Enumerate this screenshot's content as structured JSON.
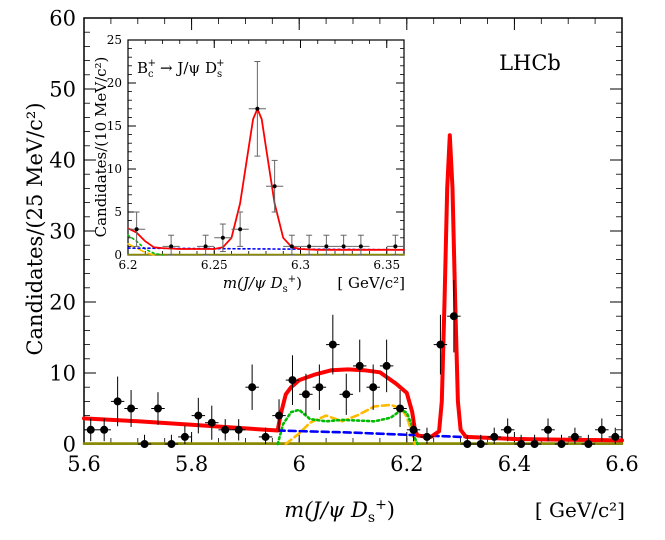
{
  "chart_data": [
    {
      "type": "scatter",
      "title": "",
      "watermark": "LHCb",
      "xlabel": "m(J/ψ D",
      "xlabel_sub": "s",
      "xlabel_sup": "+",
      "xlabel_close": ")",
      "xunit": "[ GeV/c²]",
      "ylabel": "Candidates/(25 MeV/c²)",
      "xlim": [
        5.6,
        6.6
      ],
      "ylim": [
        0,
        60
      ],
      "x_ticks": [
        5.6,
        5.8,
        6,
        6.2,
        6.4,
        6.6
      ],
      "x_tick_labels": [
        "5.6",
        "5.8",
        "6",
        "6.2",
        "6.4",
        "6.6"
      ],
      "y_ticks": [
        0,
        10,
        20,
        30,
        40,
        50,
        60
      ],
      "y_tick_labels": [
        "0",
        "10",
        "20",
        "30",
        "40",
        "50",
        "60"
      ],
      "bin_half_width": 0.0125,
      "data_points": [
        {
          "x": 5.6125,
          "y": 2,
          "err": 1.6
        },
        {
          "x": 5.6375,
          "y": 2,
          "err": 1.6
        },
        {
          "x": 5.6625,
          "y": 6,
          "err": 3.5
        },
        {
          "x": 5.6875,
          "y": 5,
          "err": 2.6
        },
        {
          "x": 5.7125,
          "y": 0,
          "err": 1.3
        },
        {
          "x": 5.7375,
          "y": 5,
          "err": 2.3
        },
        {
          "x": 5.7625,
          "y": 0,
          "err": 1.3
        },
        {
          "x": 5.7875,
          "y": 1,
          "err": 1.6
        },
        {
          "x": 5.8125,
          "y": 4,
          "err": 2.5
        },
        {
          "x": 5.8375,
          "y": 3,
          "err": 2.4
        },
        {
          "x": 5.8625,
          "y": 2,
          "err": 1.5
        },
        {
          "x": 5.8875,
          "y": 2,
          "err": 1.5
        },
        {
          "x": 5.9125,
          "y": 8,
          "err": 3.2
        },
        {
          "x": 5.9375,
          "y": 1,
          "err": 1.3
        },
        {
          "x": 5.9625,
          "y": 4,
          "err": 2.3
        },
        {
          "x": 5.9875,
          "y": 9,
          "err": 3.5
        },
        {
          "x": 6.0125,
          "y": 7,
          "err": 2.9
        },
        {
          "x": 6.0375,
          "y": 8,
          "err": 3.2
        },
        {
          "x": 6.0625,
          "y": 14,
          "err": 4.2
        },
        {
          "x": 6.0875,
          "y": 7,
          "err": 2.9
        },
        {
          "x": 6.1125,
          "y": 11,
          "err": 3.7
        },
        {
          "x": 6.1375,
          "y": 8,
          "err": 3.2
        },
        {
          "x": 6.1625,
          "y": 11,
          "err": 3.7
        },
        {
          "x": 6.1875,
          "y": 5,
          "err": 2.6
        },
        {
          "x": 6.2125,
          "y": 2,
          "err": 1.6
        },
        {
          "x": 6.2375,
          "y": 1,
          "err": 1.3
        },
        {
          "x": 6.2625,
          "y": 14,
          "err": 4.2
        },
        {
          "x": 6.2875,
          "y": 18,
          "err": 5.1
        },
        {
          "x": 6.3125,
          "y": 0,
          "err": 1.3
        },
        {
          "x": 6.3375,
          "y": 0,
          "err": 1.3
        },
        {
          "x": 6.3625,
          "y": 1,
          "err": 1.3
        },
        {
          "x": 6.3875,
          "y": 2,
          "err": 1.6
        },
        {
          "x": 6.4125,
          "y": 0,
          "err": 1.3
        },
        {
          "x": 6.4375,
          "y": 0,
          "err": 1.3
        },
        {
          "x": 6.4625,
          "y": 2,
          "err": 1.6
        },
        {
          "x": 6.4875,
          "y": 0,
          "err": 1.3
        },
        {
          "x": 6.5125,
          "y": 1,
          "err": 1.3
        },
        {
          "x": 6.5375,
          "y": 0,
          "err": 1.3
        },
        {
          "x": 6.5625,
          "y": 2,
          "err": 1.6
        },
        {
          "x": 6.5875,
          "y": 1,
          "err": 1.3
        }
      ],
      "series": [
        {
          "name": "total-fit",
          "color": "#ff0000",
          "style": "solid",
          "x": [
            5.6,
            5.7,
            5.8,
            5.9,
            5.96,
            5.965,
            5.975,
            5.985,
            6.0,
            6.03,
            6.06,
            6.09,
            6.12,
            6.15,
            6.18,
            6.2,
            6.21,
            6.215,
            6.22,
            6.23,
            6.245,
            6.26,
            6.265,
            6.27,
            6.275,
            6.28,
            6.285,
            6.29,
            6.295,
            6.3,
            6.31,
            6.4,
            6.5,
            6.6
          ],
          "y": [
            3.6,
            3.2,
            2.7,
            2.2,
            1.9,
            4.0,
            7.0,
            8.0,
            9.0,
            9.8,
            10.4,
            10.5,
            10.4,
            10.1,
            8.5,
            7.2,
            4.5,
            2.0,
            1.2,
            1.1,
            1.0,
            1.8,
            6.0,
            20.0,
            36.0,
            43.5,
            36.0,
            20.0,
            6.0,
            2.0,
            1.0,
            0.7,
            0.6,
            0.5
          ]
        },
        {
          "name": "background",
          "color": "#0000ff",
          "style": "dashed",
          "x": [
            5.96,
            6.1,
            6.2,
            6.3,
            6.4,
            6.5,
            6.6
          ],
          "y": [
            1.9,
            1.6,
            1.3,
            1.0,
            0.8,
            0.6,
            0.5
          ]
        },
        {
          "name": "partially-reconstructed-green",
          "color": "#00bb00",
          "style": "dotted",
          "x": [
            5.96,
            5.97,
            5.985,
            6.0,
            6.02,
            6.05,
            6.08,
            6.11,
            6.14,
            6.17,
            6.19,
            6.2,
            6.21,
            6.215,
            6.22
          ],
          "y": [
            0,
            2.8,
            4.5,
            4.8,
            3.5,
            3.2,
            3.4,
            3.3,
            3.2,
            3.7,
            4.8,
            4.4,
            2.5,
            0.8,
            0
          ]
        },
        {
          "name": "partially-reconstructed-yellow",
          "color": "#ffbb00",
          "style": "dashed",
          "x": [
            5.975,
            6.0,
            6.02,
            6.05,
            6.08,
            6.11,
            6.14,
            6.17,
            6.19,
            6.2,
            6.21,
            6.215
          ],
          "y": [
            0,
            1.5,
            3.0,
            4.0,
            3.2,
            4.1,
            5.3,
            5.5,
            5.0,
            3.8,
            1.5,
            0
          ]
        },
        {
          "name": "olive-baseline",
          "color": "#8a8a00",
          "style": "solid",
          "x": [
            5.6,
            6.6
          ],
          "y": [
            0.05,
            0.05
          ]
        }
      ]
    },
    {
      "type": "scatter",
      "title": "",
      "legend_text": "B",
      "legend_text_sub": "c",
      "legend_text_sup": "+",
      "legend_arrow": "→ J/ψ D",
      "legend_arrow_sub": "s",
      "legend_arrow_sup": "+",
      "xlabel": "m(J/ψ D",
      "xlabel_sub": "s",
      "xlabel_sup": "+",
      "xlabel_close": ")",
      "xunit": "[ GeV/c²]",
      "ylabel": "Candidates/(10 MeV/c²)",
      "xlim": [
        6.2,
        6.36
      ],
      "ylim": [
        0,
        25
      ],
      "x_ticks": [
        6.2,
        6.25,
        6.3,
        6.35
      ],
      "x_tick_labels": [
        "6.2",
        "6.25",
        "6.3",
        "6.35"
      ],
      "y_ticks": [
        0,
        5,
        10,
        15,
        20,
        25
      ],
      "y_tick_labels": [
        "0",
        "5",
        "10",
        "15",
        "20",
        "25"
      ],
      "bin_half_width": 0.005,
      "data_points": [
        {
          "x": 6.205,
          "y": 3,
          "err": 2.0
        },
        {
          "x": 6.225,
          "y": 1,
          "err": 1.3
        },
        {
          "x": 6.245,
          "y": 1,
          "err": 1.3
        },
        {
          "x": 6.255,
          "y": 2,
          "err": 1.6
        },
        {
          "x": 6.265,
          "y": 3,
          "err": 2.0
        },
        {
          "x": 6.275,
          "y": 17,
          "err": 5.5
        },
        {
          "x": 6.285,
          "y": 8,
          "err": 3.0
        },
        {
          "x": 6.295,
          "y": 1,
          "err": 1.3
        },
        {
          "x": 6.305,
          "y": 1,
          "err": 1.3
        },
        {
          "x": 6.315,
          "y": 1,
          "err": 1.3
        },
        {
          "x": 6.325,
          "y": 1,
          "err": 1.3
        },
        {
          "x": 6.335,
          "y": 1,
          "err": 1.3
        },
        {
          "x": 6.355,
          "y": 1,
          "err": 1.3
        }
      ],
      "series": [
        {
          "name": "total-fit",
          "color": "#ff0000",
          "style": "solid",
          "x": [
            6.2,
            6.205,
            6.21,
            6.215,
            6.22,
            6.23,
            6.24,
            6.25,
            6.255,
            6.26,
            6.265,
            6.27,
            6.2725,
            6.275,
            6.2775,
            6.28,
            6.285,
            6.29,
            6.295,
            6.3,
            6.31,
            6.33,
            6.36
          ],
          "y": [
            3.1,
            2.6,
            1.6,
            0.9,
            0.8,
            0.7,
            0.7,
            0.7,
            0.9,
            2.0,
            6.0,
            12.5,
            15.8,
            17.0,
            15.8,
            12.5,
            6.0,
            2.0,
            0.9,
            0.7,
            0.6,
            0.6,
            0.6
          ]
        },
        {
          "name": "background",
          "color": "#0000ff",
          "style": "dotted",
          "x": [
            6.2,
            6.36
          ],
          "y": [
            0.8,
            0.6
          ]
        },
        {
          "name": "partially-reconstructed-green",
          "color": "#00bb00",
          "style": "dotted",
          "x": [
            6.2,
            6.205,
            6.21,
            6.215,
            6.22
          ],
          "y": [
            2.3,
            1.6,
            0.7,
            0.2,
            0
          ]
        },
        {
          "name": "partially-reconstructed-yellow",
          "color": "#ffbb00",
          "style": "dashed",
          "x": [
            6.2,
            6.205,
            6.21,
            6.215
          ],
          "y": [
            1.3,
            0.8,
            0.3,
            0
          ]
        },
        {
          "name": "olive-baseline",
          "color": "#8a8a00",
          "style": "solid",
          "x": [
            6.2,
            6.36
          ],
          "y": [
            0.05,
            0.05
          ]
        }
      ]
    }
  ]
}
